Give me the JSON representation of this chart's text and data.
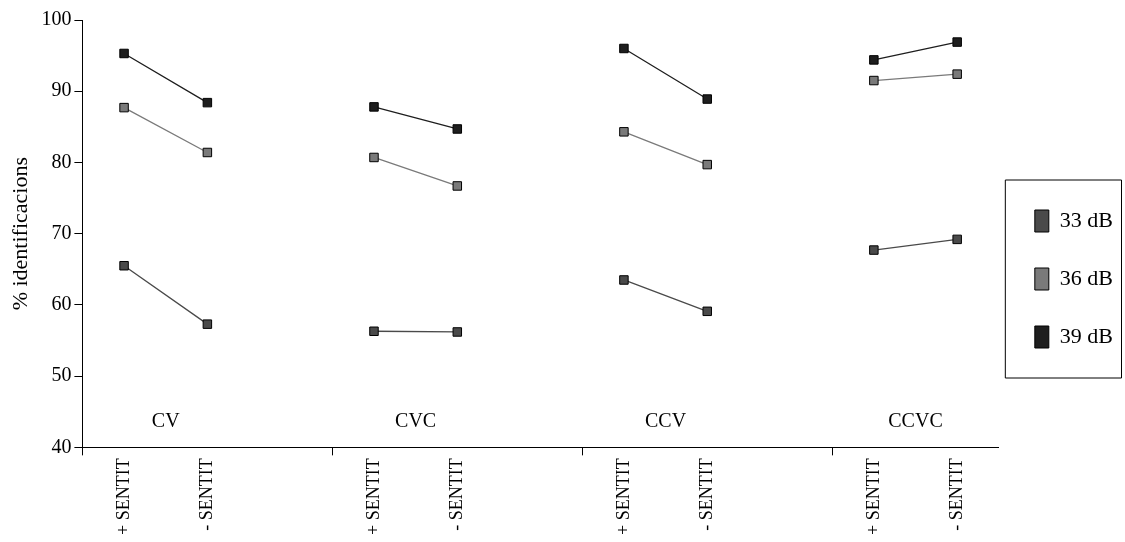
{
  "chart_data": {
    "type": "line",
    "ylabel": "% identificacions",
    "categories": [
      "+ SENTIT",
      "- SENTIT",
      null,
      "+ SENTIT",
      "- SENTIT",
      null,
      "+ SENTIT",
      "- SENTIT",
      null,
      "+ SENTIT",
      "- SENTIT"
    ],
    "series": [
      {
        "name": "33 dB",
        "color": "#4a4a4a",
        "values": [
          65.5,
          57.3,
          null,
          56.3,
          56.2,
          null,
          63.5,
          59.1,
          null,
          67.7,
          69.2
        ]
      },
      {
        "name": "36 dB",
        "color": "#7a7a7a",
        "values": [
          87.7,
          81.4,
          null,
          80.7,
          76.7,
          null,
          84.3,
          79.7,
          null,
          91.5,
          92.4
        ]
      },
      {
        "name": "39 dB",
        "color": "#1e1e1e",
        "values": [
          95.3,
          88.4,
          null,
          87.8,
          84.7,
          null,
          96.0,
          88.9,
          null,
          94.4,
          96.9
        ]
      }
    ],
    "ylim": [
      40,
      100
    ],
    "yticks": [
      40,
      50,
      60,
      70,
      80,
      90,
      100
    ],
    "annotations": [
      "CV",
      "CVC",
      "CCV",
      "CCVC"
    ],
    "legend": "right",
    "marker": "square",
    "line_style": "solid",
    "grid": false
  }
}
